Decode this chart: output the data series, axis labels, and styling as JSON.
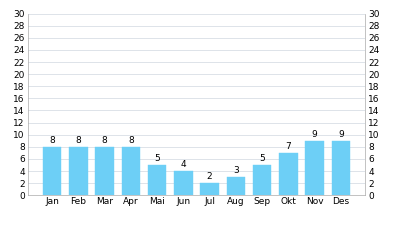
{
  "categories": [
    "Jan",
    "Feb",
    "Mar",
    "Apr",
    "Mai",
    "Jun",
    "Jul",
    "Aug",
    "Sep",
    "Okt",
    "Nov",
    "Des"
  ],
  "values": [
    8,
    8,
    8,
    8,
    5,
    4,
    2,
    3,
    5,
    7,
    9,
    9
  ],
  "bar_color": "#6DCFF6",
  "bar_edge_color": "#6DCFF6",
  "ylim": [
    0,
    30
  ],
  "yticks": [
    0,
    2,
    4,
    6,
    8,
    10,
    12,
    14,
    16,
    18,
    20,
    22,
    24,
    26,
    28,
    30
  ],
  "label_fontsize": 6.5,
  "tick_fontsize": 6.5,
  "background_color": "#ffffff",
  "header_color": "#7FD9F0",
  "grid_color": "#d0d8e0"
}
